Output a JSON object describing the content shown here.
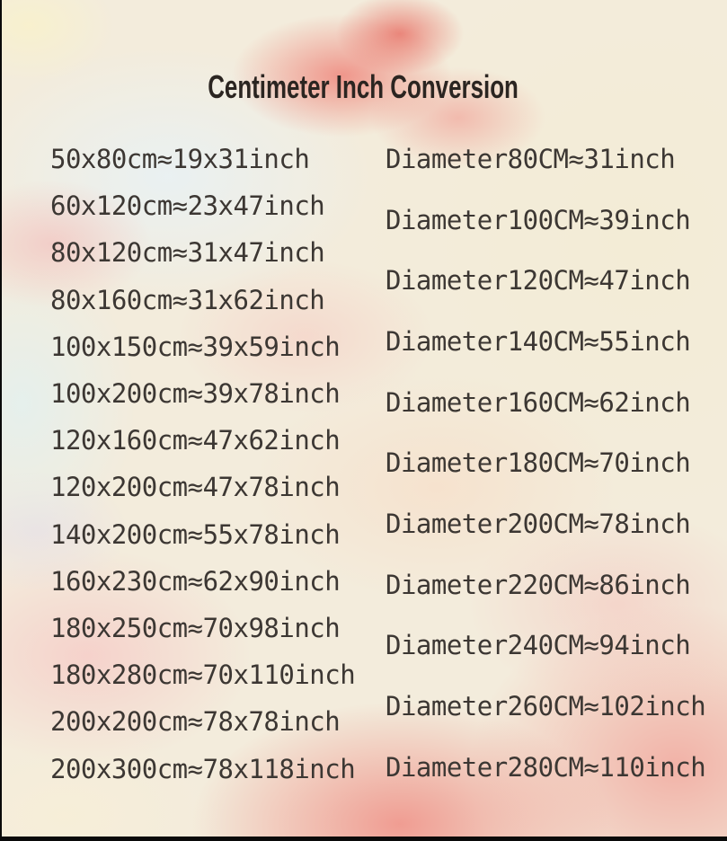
{
  "title": "Centimeter Inch Conversion",
  "columns": {
    "left": {
      "rows": [
        "50x80cm≈19x31inch",
        "60x120cm≈23x47inch",
        "80x120cm≈31x47inch",
        "80x160cm≈31x62inch",
        "100x150cm≈39x59inch",
        "100x200cm≈39x78inch",
        "120x160cm≈47x62inch",
        "120x200cm≈47x78inch",
        "140x200cm≈55x78inch",
        "160x230cm≈62x90inch",
        "180x250cm≈70x98inch",
        "180x280cm≈70x110inch",
        "200x200cm≈78x78inch",
        "200x300cm≈78x118inch"
      ]
    },
    "right": {
      "rows": [
        "Diameter80CM≈31inch",
        "Diameter100CM≈39inch",
        "Diameter120CM≈47inch",
        "Diameter140CM≈55inch",
        "Diameter160CM≈62inch",
        "Diameter180CM≈70inch",
        "Diameter200CM≈78inch",
        "Diameter220CM≈86inch",
        "Diameter240CM≈94inch",
        "Diameter260CM≈102inch",
        "Diameter280CM≈110inch"
      ]
    }
  },
  "chart_data": {
    "type": "table",
    "title": "Centimeter Inch Conversion",
    "rectangular_sizes": [
      {
        "cm": "50x80",
        "inch": "19x31"
      },
      {
        "cm": "60x120",
        "inch": "23x47"
      },
      {
        "cm": "80x120",
        "inch": "31x47"
      },
      {
        "cm": "80x160",
        "inch": "31x62"
      },
      {
        "cm": "100x150",
        "inch": "39x59"
      },
      {
        "cm": "100x200",
        "inch": "39x78"
      },
      {
        "cm": "120x160",
        "inch": "47x62"
      },
      {
        "cm": "120x200",
        "inch": "47x78"
      },
      {
        "cm": "140x200",
        "inch": "55x78"
      },
      {
        "cm": "160x230",
        "inch": "62x90"
      },
      {
        "cm": "180x250",
        "inch": "70x98"
      },
      {
        "cm": "180x280",
        "inch": "70x110"
      },
      {
        "cm": "200x200",
        "inch": "78x78"
      },
      {
        "cm": "200x300",
        "inch": "78x118"
      }
    ],
    "round_sizes": [
      {
        "diameter_cm": 80,
        "inch": 31
      },
      {
        "diameter_cm": 100,
        "inch": 39
      },
      {
        "diameter_cm": 120,
        "inch": 47
      },
      {
        "diameter_cm": 140,
        "inch": 55
      },
      {
        "diameter_cm": 160,
        "inch": 62
      },
      {
        "diameter_cm": 180,
        "inch": 70
      },
      {
        "diameter_cm": 200,
        "inch": 78
      },
      {
        "diameter_cm": 220,
        "inch": 86
      },
      {
        "diameter_cm": 240,
        "inch": 94
      },
      {
        "diameter_cm": 260,
        "inch": 102
      },
      {
        "diameter_cm": 280,
        "inch": 110
      }
    ],
    "approx_symbol": "≈"
  },
  "colors": {
    "title_text": "#2b2521",
    "row_text": "#3c3733",
    "edge_black": "#0a0a0a",
    "watercolor_palette": [
      "#ee8076",
      "#f8f1cd",
      "#e9f1f3",
      "#f2c6c2",
      "#f3ecd6",
      "#f7dec8",
      "#ef948a",
      "#e2d8ea"
    ]
  }
}
